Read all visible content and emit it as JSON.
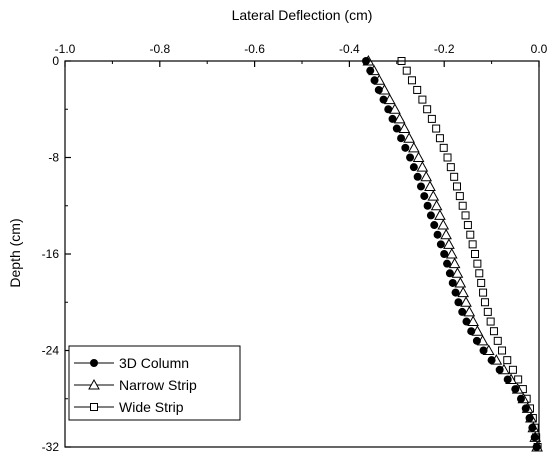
{
  "chart_data": {
    "type": "scatter",
    "xlabel": "Lateral Deflection (cm)",
    "ylabel": "Depth (cm)",
    "xlim": [
      -1.0,
      0.0
    ],
    "ylim": [
      -32,
      0
    ],
    "x_axis_position": "top",
    "x_ticks": [
      "-1.0",
      "-0.8",
      "-0.6",
      "-0.4",
      "-0.2",
      "0.0"
    ],
    "y_ticks": [
      "0",
      "-8",
      "-16",
      "-24",
      "-32"
    ],
    "legend_position": "bottom-left",
    "grid": false,
    "series": [
      {
        "name": "3D Column",
        "marker": "filled-circle",
        "points": [
          [
            -0.365,
            0.0
          ],
          [
            -0.356,
            -0.8
          ],
          [
            -0.347,
            -1.6
          ],
          [
            -0.338,
            -2.4
          ],
          [
            -0.328,
            -3.2
          ],
          [
            -0.318,
            -4.0
          ],
          [
            -0.309,
            -4.8
          ],
          [
            -0.3,
            -5.6
          ],
          [
            -0.291,
            -6.4
          ],
          [
            -0.282,
            -7.2
          ],
          [
            -0.272,
            -8.0
          ],
          [
            -0.264,
            -8.8
          ],
          [
            -0.256,
            -9.6
          ],
          [
            -0.249,
            -10.4
          ],
          [
            -0.242,
            -11.2
          ],
          [
            -0.235,
            -12.0
          ],
          [
            -0.228,
            -12.8
          ],
          [
            -0.221,
            -13.6
          ],
          [
            -0.214,
            -14.4
          ],
          [
            -0.207,
            -15.2
          ],
          [
            -0.2,
            -16.0
          ],
          [
            -0.194,
            -16.8
          ],
          [
            -0.188,
            -17.6
          ],
          [
            -0.182,
            -18.4
          ],
          [
            -0.176,
            -19.2
          ],
          [
            -0.17,
            -20.0
          ],
          [
            -0.162,
            -20.8
          ],
          [
            -0.153,
            -21.6
          ],
          [
            -0.143,
            -22.4
          ],
          [
            -0.131,
            -23.2
          ],
          [
            -0.117,
            -24.0
          ],
          [
            -0.1,
            -24.8
          ],
          [
            -0.083,
            -25.6
          ],
          [
            -0.066,
            -26.4
          ],
          [
            -0.05,
            -27.2
          ],
          [
            -0.038,
            -28.0
          ],
          [
            -0.028,
            -28.8
          ],
          [
            -0.02,
            -29.6
          ],
          [
            -0.014,
            -30.4
          ],
          [
            -0.009,
            -31.2
          ],
          [
            -0.005,
            -32.0
          ]
        ]
      },
      {
        "name": "Narrow Strip",
        "marker": "open-triangle",
        "points": [
          [
            -0.36,
            0.0
          ],
          [
            -0.348,
            -0.8
          ],
          [
            -0.337,
            -1.6
          ],
          [
            -0.326,
            -2.4
          ],
          [
            -0.315,
            -3.2
          ],
          [
            -0.304,
            -4.0
          ],
          [
            -0.294,
            -4.8
          ],
          [
            -0.284,
            -5.6
          ],
          [
            -0.274,
            -6.4
          ],
          [
            -0.264,
            -7.2
          ],
          [
            -0.254,
            -8.0
          ],
          [
            -0.246,
            -8.8
          ],
          [
            -0.238,
            -9.6
          ],
          [
            -0.23,
            -10.4
          ],
          [
            -0.223,
            -11.2
          ],
          [
            -0.216,
            -12.0
          ],
          [
            -0.209,
            -12.8
          ],
          [
            -0.202,
            -13.6
          ],
          [
            -0.196,
            -14.4
          ],
          [
            -0.19,
            -15.2
          ],
          [
            -0.184,
            -16.0
          ],
          [
            -0.178,
            -16.8
          ],
          [
            -0.172,
            -17.6
          ],
          [
            -0.166,
            -18.4
          ],
          [
            -0.16,
            -19.2
          ],
          [
            -0.154,
            -20.0
          ],
          [
            -0.147,
            -20.8
          ],
          [
            -0.139,
            -21.6
          ],
          [
            -0.13,
            -22.4
          ],
          [
            -0.119,
            -23.2
          ],
          [
            -0.106,
            -24.0
          ],
          [
            -0.09,
            -24.8
          ],
          [
            -0.074,
            -25.6
          ],
          [
            -0.059,
            -26.4
          ],
          [
            -0.045,
            -27.2
          ],
          [
            -0.033,
            -28.0
          ],
          [
            -0.024,
            -28.8
          ],
          [
            -0.017,
            -29.6
          ],
          [
            -0.012,
            -30.4
          ],
          [
            -0.008,
            -31.2
          ],
          [
            -0.004,
            -32.0
          ]
        ]
      },
      {
        "name": "Wide Strip",
        "marker": "open-square",
        "points": [
          [
            -0.29,
            0.0
          ],
          [
            -0.279,
            -0.8
          ],
          [
            -0.268,
            -1.6
          ],
          [
            -0.257,
            -2.4
          ],
          [
            -0.246,
            -3.2
          ],
          [
            -0.236,
            -4.0
          ],
          [
            -0.226,
            -4.8
          ],
          [
            -0.217,
            -5.6
          ],
          [
            -0.209,
            -6.4
          ],
          [
            -0.201,
            -7.2
          ],
          [
            -0.193,
            -8.0
          ],
          [
            -0.186,
            -8.8
          ],
          [
            -0.179,
            -9.6
          ],
          [
            -0.173,
            -10.4
          ],
          [
            -0.167,
            -11.2
          ],
          [
            -0.161,
            -12.0
          ],
          [
            -0.155,
            -12.8
          ],
          [
            -0.15,
            -13.6
          ],
          [
            -0.145,
            -14.4
          ],
          [
            -0.14,
            -15.2
          ],
          [
            -0.135,
            -16.0
          ],
          [
            -0.13,
            -16.8
          ],
          [
            -0.126,
            -17.6
          ],
          [
            -0.122,
            -18.4
          ],
          [
            -0.118,
            -19.2
          ],
          [
            -0.114,
            -20.0
          ],
          [
            -0.108,
            -20.8
          ],
          [
            -0.102,
            -21.6
          ],
          [
            -0.095,
            -22.4
          ],
          [
            -0.087,
            -23.2
          ],
          [
            -0.078,
            -24.0
          ],
          [
            -0.067,
            -24.8
          ],
          [
            -0.055,
            -25.6
          ],
          [
            -0.044,
            -26.4
          ],
          [
            -0.034,
            -27.2
          ],
          [
            -0.026,
            -28.0
          ],
          [
            -0.019,
            -28.8
          ],
          [
            -0.013,
            -29.6
          ],
          [
            -0.009,
            -30.4
          ],
          [
            -0.006,
            -31.2
          ],
          [
            -0.003,
            -32.0
          ]
        ]
      }
    ]
  }
}
